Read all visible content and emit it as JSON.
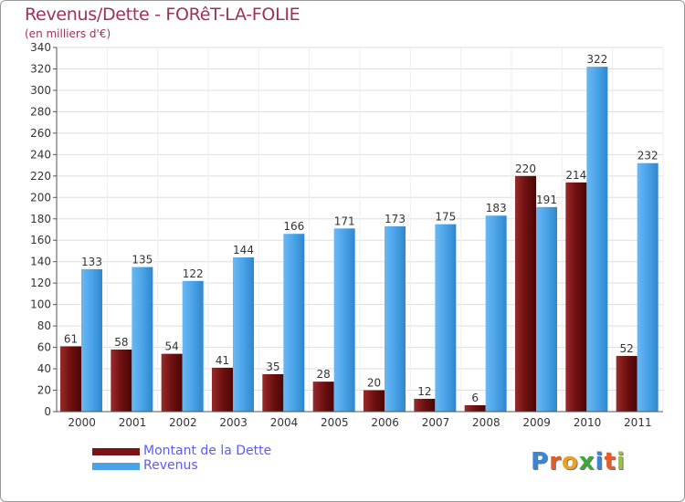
{
  "header": {
    "title": "Revenus/Dette - FORêT-LA-FOLIE",
    "subtitle": "(en milliers d'€)"
  },
  "legend": {
    "items": [
      {
        "label": "Montant de la Dette",
        "color": "#7a1515"
      },
      {
        "label": "Revenus",
        "color": "#4aa3e8"
      }
    ]
  },
  "logo": {
    "text": "Proxiti",
    "letters": [
      {
        "ch": "P",
        "color": "#3a86d6"
      },
      {
        "ch": "r",
        "color": "#e35d2a"
      },
      {
        "ch": "o",
        "color": "#e8a12a"
      },
      {
        "ch": "x",
        "color": "#3aaa3a"
      },
      {
        "ch": "i",
        "color": "#3a86d6"
      },
      {
        "ch": "t",
        "color": "#e35d2a"
      },
      {
        "ch": "i",
        "color": "#9ac23a"
      }
    ]
  },
  "chart_data": {
    "type": "bar",
    "title": "Revenus/Dette - FORêT-LA-FOLIE",
    "subtitle": "(en milliers d'€)",
    "xlabel": "",
    "ylabel": "",
    "categories": [
      "2000",
      "2001",
      "2002",
      "2003",
      "2004",
      "2005",
      "2006",
      "2007",
      "2008",
      "2009",
      "2010",
      "2011"
    ],
    "series": [
      {
        "name": "Montant de la Dette",
        "color": "#7a1515",
        "values": [
          61,
          58,
          54,
          41,
          35,
          28,
          20,
          12,
          6,
          220,
          214,
          52
        ]
      },
      {
        "name": "Revenus",
        "color": "#4aa3e8",
        "values": [
          133,
          135,
          122,
          144,
          166,
          171,
          173,
          175,
          183,
          191,
          322,
          232
        ]
      }
    ],
    "ylim": [
      0,
      340
    ],
    "yticks": [
      0,
      20,
      40,
      60,
      80,
      100,
      120,
      140,
      160,
      180,
      200,
      220,
      240,
      260,
      280,
      300,
      320,
      340
    ],
    "grid": true,
    "legend_position": "bottom-left",
    "data_labels": true
  }
}
